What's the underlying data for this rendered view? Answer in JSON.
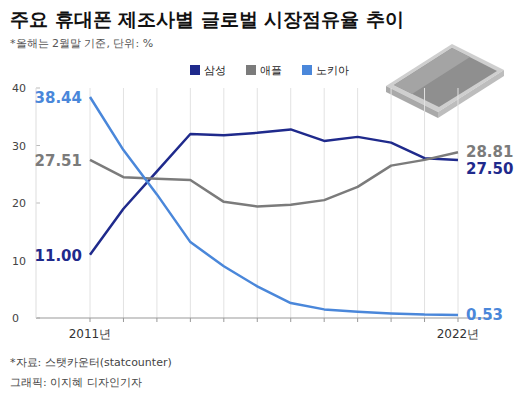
{
  "chart_data": {
    "type": "line",
    "title": "주요 휴대폰 제조사별 글로벌 시장점유율 추이",
    "subtitle": "*올해는 2월말 기준, 단위: %",
    "source": "*자료: 스탯카운터(statcounter)",
    "credit": "그래픽: 이지혜 디자인기자",
    "categories": [
      "2011년",
      null,
      null,
      null,
      null,
      null,
      null,
      null,
      null,
      null,
      null,
      "2022년"
    ],
    "series": [
      {
        "name": "삼성",
        "color": "#1f2a8c",
        "values": [
          11.0,
          19.0,
          25.5,
          32.0,
          31.8,
          32.2,
          32.8,
          30.8,
          31.5,
          30.5,
          27.8,
          27.5
        ],
        "value_labels": [
          "11.00",
          null,
          null,
          null,
          null,
          null,
          null,
          null,
          null,
          null,
          null,
          "27.50"
        ]
      },
      {
        "name": "애플",
        "color": "#7b7b7b",
        "values": [
          27.51,
          24.5,
          24.2,
          24.0,
          20.2,
          19.4,
          19.7,
          20.5,
          22.8,
          26.5,
          27.5,
          28.81
        ],
        "value_labels": [
          "27.51",
          null,
          null,
          null,
          null,
          null,
          null,
          null,
          null,
          null,
          null,
          "28.81"
        ]
      },
      {
        "name": "노키아",
        "color": "#4a87da",
        "values": [
          38.44,
          29.2,
          21.5,
          13.2,
          9.0,
          5.5,
          2.6,
          1.5,
          1.1,
          0.8,
          0.6,
          0.53
        ],
        "value_labels": [
          "38.44",
          null,
          null,
          null,
          null,
          null,
          null,
          null,
          null,
          null,
          null,
          "0.53"
        ]
      }
    ],
    "ylim": [
      0,
      40
    ],
    "yticks": [
      0,
      10,
      20,
      30,
      40
    ],
    "grid": true,
    "legend": "top",
    "data_labels": true
  }
}
